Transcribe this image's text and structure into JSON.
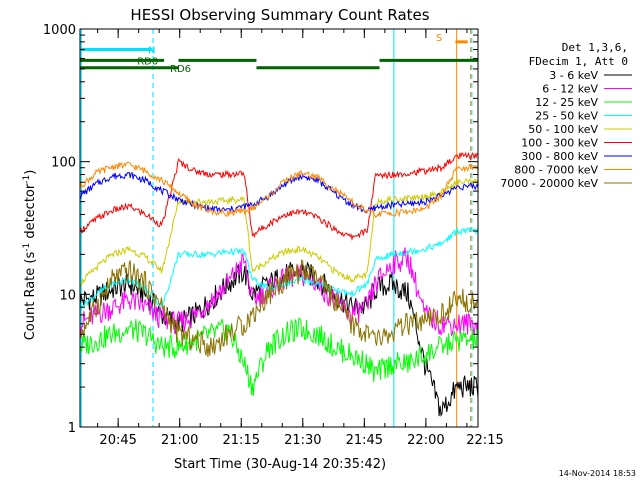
{
  "chart_data": {
    "type": "line",
    "title": "HESSI Observing Summary Count Rates",
    "xlabel": "Start Time (30-Aug-14 20:35:42)",
    "ylabel_main": "Count Rate (s",
    "ylabel_sup1": "-1",
    "ylabel_mid": " detector",
    "ylabel_sup2": "-1",
    "ylabel_end": ")",
    "y_scale": "log",
    "ylim": [
      1,
      1000
    ],
    "xlim_minutes": [
      0,
      97
    ],
    "x_ticks": [
      {
        "label": "20:45",
        "min": 9.3
      },
      {
        "label": "21:00",
        "min": 24.3
      },
      {
        "label": "21:15",
        "min": 39.3
      },
      {
        "label": "21:30",
        "min": 54.3
      },
      {
        "label": "21:45",
        "min": 69.3
      },
      {
        "label": "22:00",
        "min": 84.3
      },
      {
        "label": "22:15",
        "min": 99.3
      }
    ],
    "y_ticks": [
      {
        "label": "1",
        "value": 1
      },
      {
        "label": "10",
        "value": 10
      },
      {
        "label": "100",
        "value": 100
      },
      {
        "label": "1000",
        "value": 1000
      }
    ],
    "legend_header": [
      "Det 1,3,6,",
      "FDecim 1, Att 0"
    ],
    "legend_position": "right",
    "series": [
      {
        "name": "3 - 6 keV",
        "color": "#000000",
        "values": [
          [
            0,
            9
          ],
          [
            4,
            9.5
          ],
          [
            8,
            11
          ],
          [
            12,
            12
          ],
          [
            16,
            10
          ],
          [
            20,
            7
          ],
          [
            24,
            6
          ],
          [
            28,
            7
          ],
          [
            32,
            9
          ],
          [
            36,
            12
          ],
          [
            40,
            15
          ],
          [
            42,
            10
          ],
          [
            46,
            12
          ],
          [
            50,
            14
          ],
          [
            54,
            15
          ],
          [
            58,
            13
          ],
          [
            62,
            10
          ],
          [
            66,
            8
          ],
          [
            70,
            8
          ],
          [
            72,
            11
          ],
          [
            76,
            12
          ],
          [
            80,
            10
          ],
          [
            84,
            3
          ],
          [
            88,
            1.3
          ],
          [
            92,
            2
          ]
        ]
      },
      {
        "name": "6 - 12 keV",
        "color": "#ff00ff",
        "values": [
          [
            0,
            6
          ],
          [
            4,
            7
          ],
          [
            8,
            8
          ],
          [
            12,
            9
          ],
          [
            16,
            8
          ],
          [
            20,
            6.5
          ],
          [
            24,
            6
          ],
          [
            28,
            7
          ],
          [
            32,
            9
          ],
          [
            36,
            12
          ],
          [
            40,
            18
          ],
          [
            42,
            9
          ],
          [
            46,
            11
          ],
          [
            50,
            13
          ],
          [
            54,
            14
          ],
          [
            58,
            12
          ],
          [
            62,
            9
          ],
          [
            66,
            7
          ],
          [
            70,
            8
          ],
          [
            72,
            12
          ],
          [
            76,
            17
          ],
          [
            80,
            19
          ],
          [
            84,
            7
          ],
          [
            88,
            6
          ],
          [
            92,
            6
          ]
        ]
      },
      {
        "name": "12 - 25 keV",
        "color": "#00ff00",
        "values": [
          [
            0,
            4
          ],
          [
            4,
            4.5
          ],
          [
            8,
            5
          ],
          [
            12,
            5.5
          ],
          [
            16,
            5
          ],
          [
            20,
            4
          ],
          [
            24,
            4
          ],
          [
            28,
            4.5
          ],
          [
            32,
            5
          ],
          [
            36,
            5.5
          ],
          [
            40,
            3
          ],
          [
            42,
            2
          ],
          [
            46,
            4
          ],
          [
            50,
            5
          ],
          [
            54,
            5.5
          ],
          [
            58,
            5
          ],
          [
            62,
            4
          ],
          [
            66,
            3.5
          ],
          [
            70,
            3
          ],
          [
            72,
            2.5
          ],
          [
            76,
            3
          ],
          [
            80,
            3
          ],
          [
            84,
            3.5
          ],
          [
            88,
            4
          ],
          [
            92,
            4.5
          ]
        ]
      },
      {
        "name": "25 - 50 keV",
        "color": "#00ffff",
        "values": [
          [
            0,
            8
          ],
          [
            4,
            10
          ],
          [
            8,
            12
          ],
          [
            12,
            13
          ],
          [
            16,
            11
          ],
          [
            20,
            8
          ],
          [
            24,
            20
          ],
          [
            28,
            20
          ],
          [
            32,
            20
          ],
          [
            36,
            21
          ],
          [
            40,
            21
          ],
          [
            42,
            13
          ],
          [
            46,
            11
          ],
          [
            50,
            12
          ],
          [
            54,
            13
          ],
          [
            58,
            12
          ],
          [
            62,
            11
          ],
          [
            66,
            10
          ],
          [
            70,
            12
          ],
          [
            72,
            18
          ],
          [
            76,
            20
          ],
          [
            80,
            21
          ],
          [
            84,
            22
          ],
          [
            88,
            24
          ],
          [
            92,
            30
          ]
        ]
      },
      {
        "name": "50 - 100 keV",
        "color": "#cccc00",
        "values": [
          [
            0,
            12
          ],
          [
            4,
            16
          ],
          [
            8,
            20
          ],
          [
            12,
            22
          ],
          [
            16,
            19
          ],
          [
            20,
            15
          ],
          [
            24,
            50
          ],
          [
            28,
            50
          ],
          [
            32,
            50
          ],
          [
            36,
            51
          ],
          [
            40,
            52
          ],
          [
            42,
            15
          ],
          [
            46,
            18
          ],
          [
            50,
            21
          ],
          [
            54,
            22
          ],
          [
            58,
            19
          ],
          [
            62,
            15
          ],
          [
            66,
            13
          ],
          [
            70,
            14
          ],
          [
            72,
            50
          ],
          [
            76,
            52
          ],
          [
            80,
            53
          ],
          [
            84,
            55
          ],
          [
            88,
            58
          ],
          [
            92,
            70
          ]
        ]
      },
      {
        "name": "100 - 300 keV",
        "color": "#ff0000",
        "values": [
          [
            0,
            30
          ],
          [
            4,
            37
          ],
          [
            8,
            43
          ],
          [
            12,
            46
          ],
          [
            16,
            40
          ],
          [
            20,
            33
          ],
          [
            24,
            100
          ],
          [
            28,
            85
          ],
          [
            32,
            80
          ],
          [
            36,
            80
          ],
          [
            40,
            82
          ],
          [
            42,
            28
          ],
          [
            46,
            34
          ],
          [
            50,
            40
          ],
          [
            54,
            42
          ],
          [
            58,
            38
          ],
          [
            62,
            31
          ],
          [
            66,
            27
          ],
          [
            70,
            30
          ],
          [
            72,
            78
          ],
          [
            76,
            80
          ],
          [
            80,
            82
          ],
          [
            84,
            85
          ],
          [
            88,
            90
          ],
          [
            92,
            110
          ]
        ]
      },
      {
        "name": "300 - 800 keV",
        "color": "#0000ff",
        "values": [
          [
            0,
            55
          ],
          [
            4,
            68
          ],
          [
            8,
            78
          ],
          [
            12,
            80
          ],
          [
            16,
            72
          ],
          [
            20,
            60
          ],
          [
            24,
            52
          ],
          [
            28,
            47
          ],
          [
            32,
            44
          ],
          [
            36,
            43
          ],
          [
            40,
            46
          ],
          [
            42,
            47
          ],
          [
            46,
            55
          ],
          [
            50,
            68
          ],
          [
            54,
            78
          ],
          [
            58,
            72
          ],
          [
            62,
            58
          ],
          [
            66,
            48
          ],
          [
            70,
            42
          ],
          [
            72,
            45
          ],
          [
            76,
            47
          ],
          [
            80,
            48
          ],
          [
            84,
            50
          ],
          [
            88,
            55
          ],
          [
            92,
            65
          ]
        ]
      },
      {
        "name": "800 - 7000 keV",
        "color": "#ff8800",
        "values": [
          [
            0,
            65
          ],
          [
            4,
            82
          ],
          [
            8,
            92
          ],
          [
            12,
            95
          ],
          [
            16,
            85
          ],
          [
            20,
            72
          ],
          [
            24,
            58
          ],
          [
            28,
            47
          ],
          [
            32,
            42
          ],
          [
            36,
            41
          ],
          [
            40,
            42
          ],
          [
            42,
            44
          ],
          [
            46,
            55
          ],
          [
            50,
            72
          ],
          [
            54,
            82
          ],
          [
            58,
            76
          ],
          [
            62,
            62
          ],
          [
            66,
            50
          ],
          [
            70,
            42
          ],
          [
            72,
            40
          ],
          [
            76,
            41
          ],
          [
            80,
            42
          ],
          [
            84,
            44
          ],
          [
            88,
            55
          ],
          [
            92,
            90
          ]
        ]
      },
      {
        "name": "7000 - 20000 keV",
        "color": "#8b7300",
        "values": [
          [
            0,
            5
          ],
          [
            4,
            8
          ],
          [
            8,
            13
          ],
          [
            12,
            15
          ],
          [
            16,
            12
          ],
          [
            20,
            8
          ],
          [
            24,
            5
          ],
          [
            28,
            4.5
          ],
          [
            32,
            4
          ],
          [
            36,
            5
          ],
          [
            40,
            6
          ],
          [
            42,
            7
          ],
          [
            46,
            10
          ],
          [
            50,
            13
          ],
          [
            54,
            15
          ],
          [
            58,
            13
          ],
          [
            62,
            9
          ],
          [
            66,
            6
          ],
          [
            70,
            5
          ],
          [
            72,
            4.5
          ],
          [
            76,
            5
          ],
          [
            80,
            6
          ],
          [
            84,
            6
          ],
          [
            88,
            7
          ],
          [
            92,
            9
          ]
        ]
      }
    ],
    "flags": [
      {
        "label": "N",
        "color": "#00e0ff",
        "start": 0,
        "end": 17.5,
        "level": 700
      },
      {
        "label": "RD0",
        "color": "#006400",
        "start": 0,
        "end": 20.5,
        "level": 580
      },
      {
        "label": "RD0",
        "color": "#006400",
        "start": 24,
        "end": 43,
        "level": 580
      },
      {
        "label": "RD0",
        "color": "#006400",
        "start": 73,
        "end": 97,
        "level": 580
      },
      {
        "label": "RD6",
        "color": "#006400",
        "start": 0,
        "end": 24,
        "level": 510
      },
      {
        "label": "RD6",
        "color": "#006400",
        "start": 43,
        "end": 73,
        "level": 510
      },
      {
        "label": "S",
        "color": "#ff8800",
        "start": 91.5,
        "end": 94.5,
        "level": 800
      }
    ],
    "flag_labels": [
      {
        "text": "N",
        "color": "#00e0ff",
        "at": 17.5,
        "level": 700
      },
      {
        "text": "RD0",
        "color": "#006400",
        "at": 16.5,
        "level": 580
      },
      {
        "text": "RD6",
        "color": "#006400",
        "at": 24.5,
        "level": 510
      },
      {
        "text": "S",
        "color": "#ff8800",
        "at": 87.5,
        "level": 870
      }
    ],
    "vlines": [
      {
        "at": 0.3,
        "color": "#00e0ff",
        "dash": false
      },
      {
        "at": 17.8,
        "color": "#00e0ff",
        "dash": true
      },
      {
        "at": 76.5,
        "color": "#00e0ff",
        "dash": false
      },
      {
        "at": 95.5,
        "color": "#00e0ff",
        "dash": true
      },
      {
        "at": 91.8,
        "color": "#ff8800",
        "dash": false
      },
      {
        "at": 95.2,
        "color": "#ff8800",
        "dash": true
      }
    ]
  },
  "footer": {
    "date_stamp": "14-Nov-2014 18:53"
  }
}
